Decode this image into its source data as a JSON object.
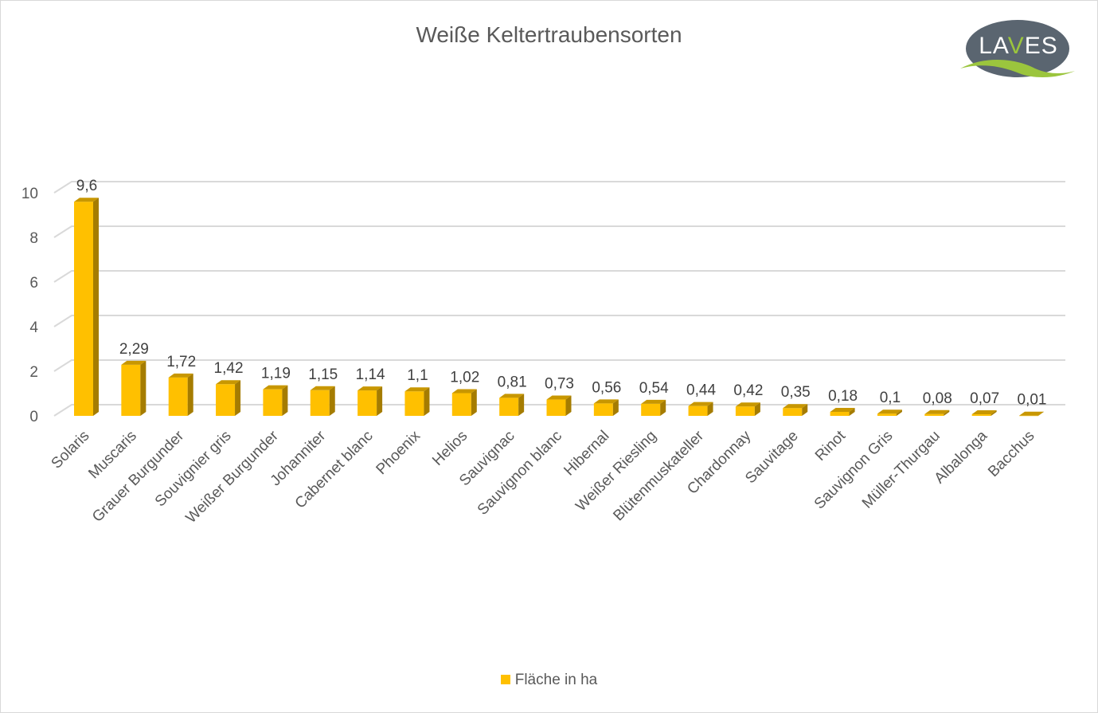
{
  "chart_data": {
    "type": "bar",
    "title": "Weiße Keltertraubensorten",
    "categories": [
      "Solaris",
      "Muscaris",
      "Grauer Burgunder",
      "Souvignier gris",
      "Weißer Burgunder",
      "Johanniter",
      "Cabernet blanc",
      "Phoenix",
      "Helios",
      "Sauvignac",
      "Sauvignon blanc",
      "Hibernal",
      "Weißer Riesling",
      "Blütenmuskateller",
      "Chardonnay",
      "Sauvitage",
      "Rinot",
      "Sauvignon Gris",
      "Müller-Thurgau",
      "Albalonga",
      "Bacchus"
    ],
    "series": [
      {
        "name": "Fläche in ha",
        "values": [
          9.6,
          2.29,
          1.72,
          1.42,
          1.19,
          1.15,
          1.14,
          1.1,
          1.02,
          0.81,
          0.73,
          0.56,
          0.54,
          0.44,
          0.42,
          0.35,
          0.18,
          0.1,
          0.08,
          0.07,
          0.01
        ],
        "data_labels": [
          "9,6",
          "2,29",
          "1,72",
          "1,42",
          "1,19",
          "1,15",
          "1,14",
          "1,1",
          "1,02",
          "0,81",
          "0,73",
          "0,56",
          "0,54",
          "0,44",
          "0,42",
          "0,35",
          "0,18",
          "0,1",
          "0,08",
          "0,07",
          "0,01"
        ],
        "color": "#ffc000"
      }
    ],
    "yticks": [
      "0",
      "2",
      "4",
      "6",
      "8",
      "10"
    ],
    "ylim": [
      0,
      10
    ],
    "grid": true,
    "legend": "bottom"
  },
  "logo": {
    "text": "LAVES",
    "bg": "#5a6570",
    "accent": "#9bc53d"
  }
}
